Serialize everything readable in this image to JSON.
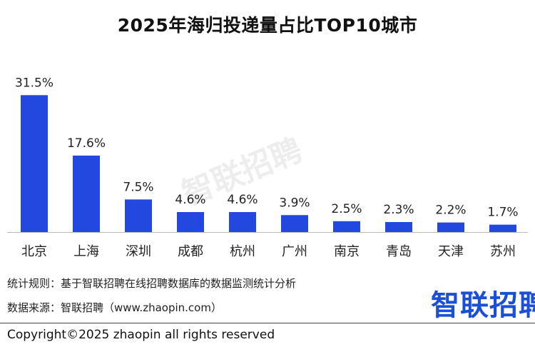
{
  "colors": {
    "bar": "#2348e0",
    "axis": "#bbbbbb"
  },
  "chart_data": {
    "type": "bar",
    "title": "2025年海归投递量占比TOP10城市",
    "xlabel": "",
    "ylabel": "",
    "ylim": [
      0,
      35
    ],
    "categories": [
      "北京",
      "上海",
      "深圳",
      "成都",
      "杭州",
      "广州",
      "南京",
      "青岛",
      "天津",
      "苏州"
    ],
    "values": [
      31.5,
      17.6,
      7.5,
      4.6,
      4.6,
      3.9,
      2.5,
      2.3,
      2.2,
      1.7
    ],
    "value_labels": [
      "31.5%",
      "17.6%",
      "7.5%",
      "4.6%",
      "4.6%",
      "3.9%",
      "2.5%",
      "2.3%",
      "2.2%",
      "1.7%"
    ]
  },
  "footnotes": {
    "method": "统计规则：基于智联招聘在线招聘数据库的数据监测统计分析",
    "source": "数据来源：智联招聘（www.zhaopin.com）"
  },
  "logo_text": "智联招聘",
  "watermark_text": "智联招聘",
  "copyright": "Copyright©2025 zhaopin all rights reserved"
}
